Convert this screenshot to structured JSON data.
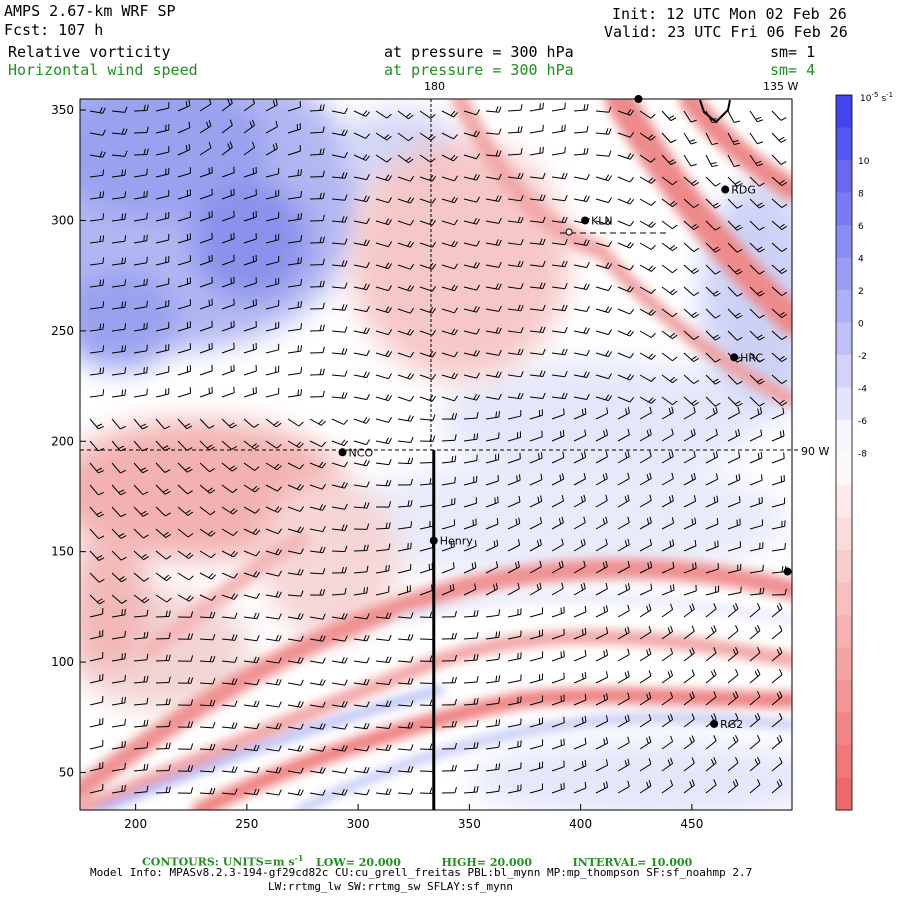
{
  "header": {
    "model": "AMPS 2.67-km WRF SP",
    "fcst": "Fcst:  107 h",
    "init": "Init: 12 UTC Mon 02 Feb 26",
    "valid": "Valid: 23 UTC Fri 06 Feb 26",
    "field1": "Relative vorticity",
    "field1_level": "at pressure =  300 hPa",
    "field1_sm": "sm= 1",
    "field2": "Horizontal wind speed",
    "field2_level": "at pressure =  300 hPa",
    "field2_sm": "sm= 4"
  },
  "map_labels": {
    "lon_180": "180",
    "lon_135w": "135 W",
    "lat_90w": "90 W"
  },
  "footer": {
    "contours": "CONTOURS:  UNITS=m s",
    "contours_sup": "-1",
    "low": "LOW=  20.000",
    "high": "HIGH=  20.000",
    "interval": "INTERVAL=   10.000",
    "model_info": "Model Info: MPASv8.2.3-194-gf29cd82c CU:cu_grell_freitas PBL:bl_mynn MP:mp_thompson SF:sf_noahmp 2.7",
    "model_info2": "LW:rrtmg_lw SW:rrtmg_sw SFLAY:sf_mynn"
  },
  "colors": {
    "blue_max": "#4444ee",
    "red_max": "#ee6a6a",
    "neutral": "#ffffff",
    "footer_green": "#1f8f1f"
  },
  "chart_data": {
    "type": "heatmap",
    "title": "Relative vorticity / Horizontal wind speed at 300 hPa",
    "x_ticks": [
      200,
      250,
      300,
      350,
      400,
      450
    ],
    "y_ticks": [
      50,
      100,
      150,
      200,
      250,
      300,
      350
    ],
    "xlim": [
      175,
      495
    ],
    "ylim": [
      33,
      355
    ],
    "colorbar": {
      "unit_label": "10",
      "unit_sup": "-5",
      "unit_suffix": "s",
      "unit_suffix_sup": "-1",
      "tick_labels": [
        "10",
        "8",
        "6",
        "4",
        "2",
        "0",
        "-2",
        "-4",
        "-6",
        "-8"
      ],
      "n_levels": 22
    },
    "stations": [
      {
        "name": "RDG",
        "x": 465,
        "y": 314
      },
      {
        "name": "KLN",
        "x": 402,
        "y": 300
      },
      {
        "name": "HRC",
        "x": 469,
        "y": 238
      },
      {
        "name": "NCO",
        "x": 293,
        "y": 195
      },
      {
        "name": "Henry",
        "x": 334,
        "y": 155
      },
      {
        "name": "RG2",
        "x": 460,
        "y": 72
      },
      {
        "name": "",
        "x": 493,
        "y": 141
      },
      {
        "name": "",
        "x": 426,
        "y": 355
      }
    ],
    "cross_section_x": 334,
    "cross_section_y": [
      33,
      196
    ]
  }
}
